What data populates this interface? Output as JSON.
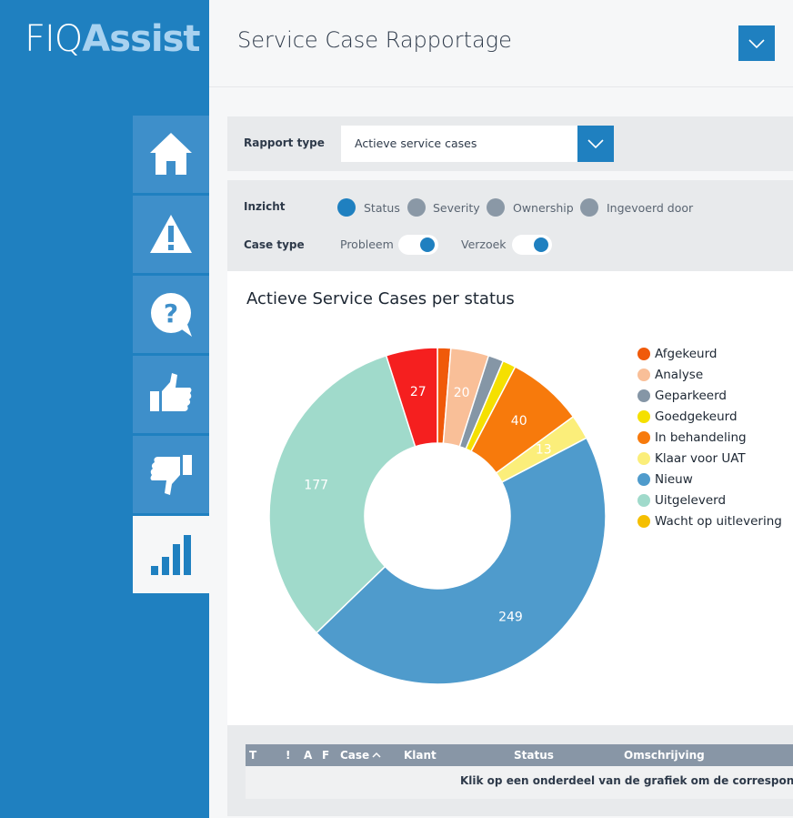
{
  "header": {
    "logo_main": "FIQ",
    "logo_accent": "Assist",
    "title": "Service Case Rapportage"
  },
  "filters": {
    "rapport_type_label": "Rapport type",
    "rapport_type_value": "Actieve service cases",
    "inzicht_label": "Inzicht",
    "inzicht_options": [
      "Status",
      "Severity",
      "Ownership",
      "Ingevoerd door"
    ],
    "case_type_label": "Case type",
    "case_type_options": [
      "Probleem",
      "Verzoek"
    ]
  },
  "chart_data": {
    "type": "donut",
    "title": "Actieve Service Cases per status",
    "categories": [
      "Afgekeurd",
      "Analyse",
      "Geparkeerd",
      "Goedgekeurd",
      "In behandeling",
      "Klaar voor UAT",
      "Nieuw",
      "Uitgeleverd",
      "Wacht op uitlevering"
    ],
    "values": [
      7,
      20,
      8,
      7,
      40,
      13,
      249,
      177,
      27
    ],
    "colors": [
      "#f05a0a",
      "#f9bf98",
      "#8596a6",
      "#f5e000",
      "#f77a0c",
      "#fbee7a",
      "#4f9bcc",
      "#a0dacb",
      "#f51f1f"
    ],
    "legend_colors": [
      "#f05a0a",
      "#f9bf98",
      "#8596a6",
      "#f5e000",
      "#f77a0c",
      "#fbee7a",
      "#4f9bcc",
      "#a0dacb",
      "#f5bf00"
    ]
  },
  "table": {
    "headers": [
      "T",
      "!",
      "A",
      "F",
      "Case",
      "Klant",
      "Status",
      "Omschrijving"
    ],
    "message": "Klik op een onderdeel van de grafiek om de corresponderen"
  }
}
